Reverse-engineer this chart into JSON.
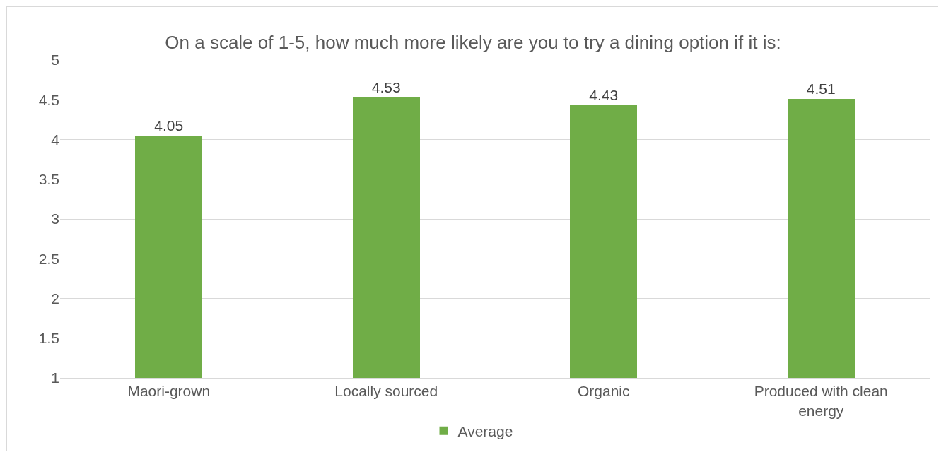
{
  "chart_data": {
    "type": "bar",
    "title": "On a scale of 1-5, how much more likely are you to try a dining option if it is:",
    "categories": [
      "Maori-grown",
      "Locally sourced",
      "Organic",
      "Produced with clean energy"
    ],
    "series": [
      {
        "name": "Average",
        "color": "#70ad47",
        "values": [
          4.05,
          4.53,
          4.43,
          4.51
        ]
      }
    ],
    "ylim": [
      1,
      5
    ],
    "yticks": [
      1,
      1.5,
      2,
      2.5,
      3,
      3.5,
      4,
      4.5,
      5
    ],
    "grid": "y",
    "legend": "bottom",
    "data_labels": true
  }
}
